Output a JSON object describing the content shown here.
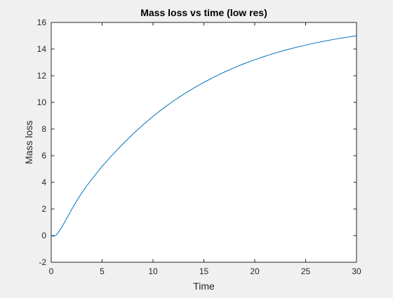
{
  "chart_data": {
    "type": "line",
    "title": "Mass loss vs time (low res)",
    "xlabel": "Time",
    "ylabel": "Mass loss",
    "xlim": [
      0,
      30
    ],
    "ylim": [
      -2,
      16
    ],
    "xticks": [
      0,
      5,
      10,
      15,
      20,
      25,
      30
    ],
    "yticks": [
      -2,
      0,
      2,
      4,
      6,
      8,
      10,
      12,
      14,
      16
    ],
    "grid": false,
    "legend": "none",
    "series": [
      {
        "color": "#0072bd",
        "x": [
          0,
          0.25,
          0.5,
          0.75,
          1,
          1.5,
          2,
          2.5,
          3,
          3.5,
          4,
          5,
          6,
          7,
          8,
          9,
          10,
          11,
          12,
          13,
          14,
          15,
          16,
          17,
          18,
          19,
          20,
          21,
          22,
          23,
          24,
          25,
          26,
          27,
          28,
          29,
          30
        ],
        "y": [
          0,
          -0.05,
          0.05,
          0.3,
          0.6,
          1.25,
          1.95,
          2.6,
          3.2,
          3.75,
          4.25,
          5.2,
          6.05,
          6.85,
          7.6,
          8.3,
          8.95,
          9.55,
          10.1,
          10.6,
          11.07,
          11.5,
          11.9,
          12.27,
          12.61,
          12.92,
          13.2,
          13.46,
          13.7,
          13.92,
          14.12,
          14.3,
          14.47,
          14.62,
          14.76,
          14.88,
          15.0
        ]
      }
    ]
  }
}
